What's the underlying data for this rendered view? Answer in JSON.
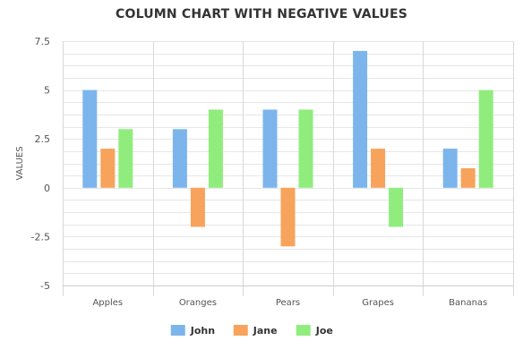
{
  "chart_data": {
    "type": "bar",
    "title": "COLUMN CHART WITH NEGATIVE VALUES",
    "ylabel": "VALUES",
    "xlabel": "",
    "categories": [
      "Apples",
      "Oranges",
      "Pears",
      "Grapes",
      "Bananas"
    ],
    "series": [
      {
        "name": "John",
        "color": "#7cb5ec",
        "values": [
          5,
          3,
          4,
          7,
          2
        ]
      },
      {
        "name": "Jane",
        "color": "#f7a35c",
        "values": [
          2,
          -2,
          -3,
          2,
          1
        ]
      },
      {
        "name": "Joe",
        "color": "#90ed7d",
        "values": [
          3,
          4,
          4,
          -2,
          5
        ]
      }
    ],
    "ylim": [
      -5,
      7.5
    ],
    "yticks": [
      7.5,
      5,
      2.5,
      0,
      -2.5,
      -5
    ],
    "ytick_labels": [
      "7.5",
      "5",
      "2.5",
      "0",
      "-2.5",
      "-5"
    ],
    "grid": true,
    "legend": "bottom"
  }
}
